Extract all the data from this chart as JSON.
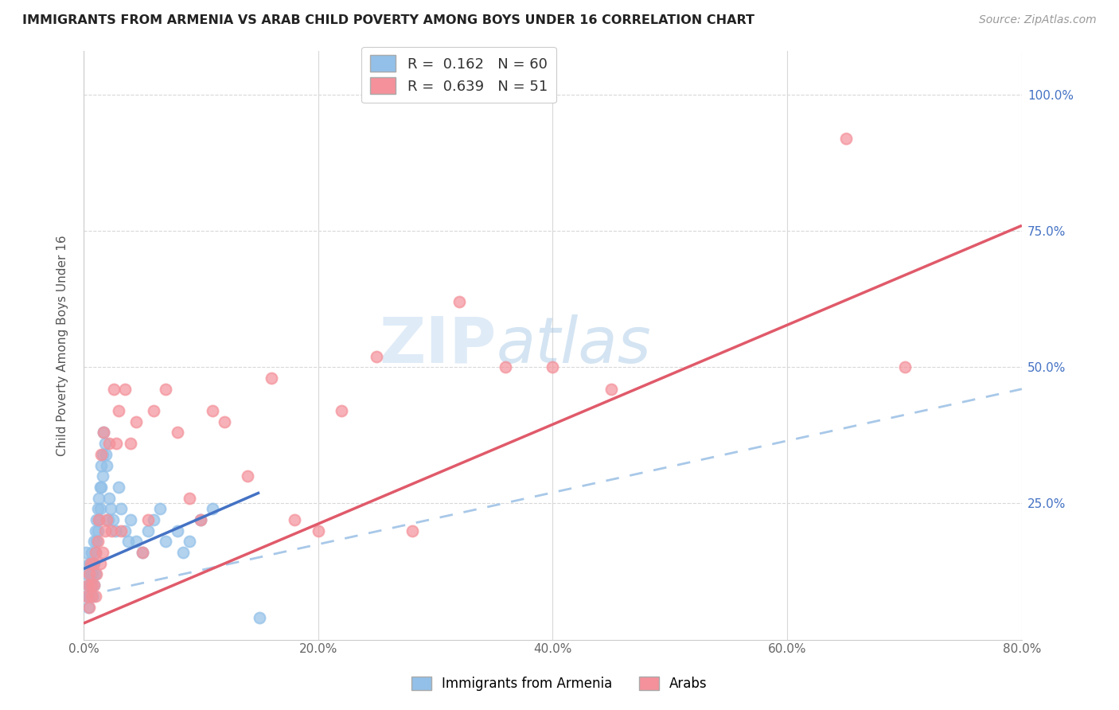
{
  "title": "IMMIGRANTS FROM ARMENIA VS ARAB CHILD POVERTY AMONG BOYS UNDER 16 CORRELATION CHART",
  "source": "Source: ZipAtlas.com",
  "ylabel": "Child Poverty Among Boys Under 16",
  "r_armenia": 0.162,
  "n_armenia": 60,
  "r_arab": 0.639,
  "n_arab": 51,
  "xlim": [
    0.0,
    0.8
  ],
  "ylim": [
    0.0,
    1.08
  ],
  "xtick_labels": [
    "0.0%",
    "",
    "",
    "",
    "",
    "20.0%",
    "",
    "",
    "",
    "",
    "40.0%",
    "",
    "",
    "",
    "",
    "60.0%",
    "",
    "",
    "",
    "",
    "80.0%"
  ],
  "xtick_vals": [
    0.0,
    0.04,
    0.08,
    0.12,
    0.16,
    0.2,
    0.24,
    0.28,
    0.32,
    0.36,
    0.4,
    0.44,
    0.48,
    0.52,
    0.56,
    0.6,
    0.64,
    0.68,
    0.72,
    0.76,
    0.8
  ],
  "xtick_show": [
    0.0,
    0.2,
    0.4,
    0.6,
    0.8
  ],
  "xtick_show_labels": [
    "0.0%",
    "20.0%",
    "40.0%",
    "60.0%",
    "80.0%"
  ],
  "ytick_vals_right": [
    0.25,
    0.5,
    0.75,
    1.0
  ],
  "ytick_labels_right": [
    "25.0%",
    "50.0%",
    "75.0%",
    "100.0%"
  ],
  "color_armenia": "#92c0e8",
  "color_arab": "#f4919a",
  "color_trendline_armenia": "#4472c4",
  "color_trendline_arab": "#e05a6a",
  "color_dashed": "#a8c8e8",
  "watermark_zip": "ZIP",
  "watermark_atlas": "atlas",
  "background_color": "#ffffff",
  "grid_color": "#d8d8d8",
  "armenia_x": [
    0.002,
    0.003,
    0.003,
    0.004,
    0.004,
    0.005,
    0.005,
    0.005,
    0.006,
    0.006,
    0.007,
    0.007,
    0.007,
    0.008,
    0.008,
    0.008,
    0.009,
    0.009,
    0.009,
    0.01,
    0.01,
    0.01,
    0.011,
    0.011,
    0.012,
    0.012,
    0.013,
    0.013,
    0.014,
    0.014,
    0.015,
    0.015,
    0.016,
    0.016,
    0.017,
    0.018,
    0.019,
    0.02,
    0.021,
    0.022,
    0.023,
    0.025,
    0.027,
    0.03,
    0.032,
    0.035,
    0.038,
    0.04,
    0.045,
    0.05,
    0.055,
    0.06,
    0.065,
    0.07,
    0.08,
    0.085,
    0.09,
    0.1,
    0.11,
    0.15
  ],
  "armenia_y": [
    0.16,
    0.12,
    0.08,
    0.1,
    0.06,
    0.14,
    0.1,
    0.08,
    0.14,
    0.12,
    0.16,
    0.12,
    0.1,
    0.14,
    0.12,
    0.08,
    0.18,
    0.14,
    0.1,
    0.2,
    0.16,
    0.12,
    0.22,
    0.18,
    0.24,
    0.2,
    0.26,
    0.22,
    0.28,
    0.24,
    0.32,
    0.28,
    0.34,
    0.3,
    0.38,
    0.36,
    0.34,
    0.32,
    0.22,
    0.26,
    0.24,
    0.22,
    0.2,
    0.28,
    0.24,
    0.2,
    0.18,
    0.22,
    0.18,
    0.16,
    0.2,
    0.22,
    0.24,
    0.18,
    0.2,
    0.16,
    0.18,
    0.22,
    0.24,
    0.04
  ],
  "arab_x": [
    0.003,
    0.004,
    0.005,
    0.005,
    0.006,
    0.007,
    0.007,
    0.008,
    0.009,
    0.01,
    0.01,
    0.011,
    0.012,
    0.013,
    0.014,
    0.015,
    0.016,
    0.017,
    0.018,
    0.02,
    0.022,
    0.024,
    0.026,
    0.028,
    0.03,
    0.032,
    0.035,
    0.04,
    0.045,
    0.05,
    0.055,
    0.06,
    0.07,
    0.08,
    0.09,
    0.1,
    0.11,
    0.12,
    0.14,
    0.16,
    0.18,
    0.2,
    0.22,
    0.25,
    0.28,
    0.32,
    0.36,
    0.4,
    0.45,
    0.65,
    0.7
  ],
  "arab_y": [
    0.08,
    0.1,
    0.06,
    0.12,
    0.14,
    0.08,
    0.1,
    0.14,
    0.1,
    0.08,
    0.16,
    0.12,
    0.18,
    0.22,
    0.14,
    0.34,
    0.16,
    0.38,
    0.2,
    0.22,
    0.36,
    0.2,
    0.46,
    0.36,
    0.42,
    0.2,
    0.46,
    0.36,
    0.4,
    0.16,
    0.22,
    0.42,
    0.46,
    0.38,
    0.26,
    0.22,
    0.42,
    0.4,
    0.3,
    0.48,
    0.22,
    0.2,
    0.42,
    0.52,
    0.2,
    0.62,
    0.5,
    0.5,
    0.46,
    0.92,
    0.5
  ],
  "arab_trendline": [
    0.0,
    0.8,
    0.03,
    0.76
  ],
  "armenia_trendline_x": [
    0.0,
    0.15
  ],
  "armenia_trendline_y": [
    0.13,
    0.27
  ],
  "dashed_line": [
    0.0,
    0.8,
    0.08,
    0.46
  ]
}
